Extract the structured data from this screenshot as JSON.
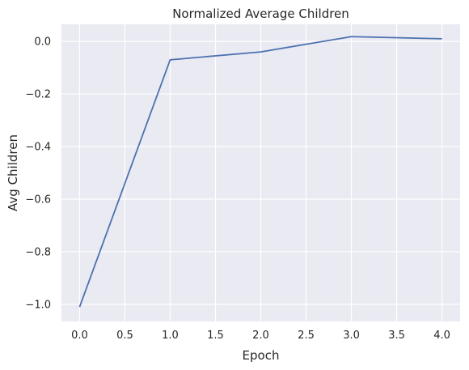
{
  "chart_data": {
    "type": "line",
    "title": "Normalized Average Children",
    "xlabel": "Epoch",
    "ylabel": "Avg Children",
    "xlim": [
      -0.2,
      4.2
    ],
    "ylim": [
      -1.065,
      0.065
    ],
    "xticks": [
      0.0,
      0.5,
      1.0,
      1.5,
      2.0,
      2.5,
      3.0,
      3.5,
      4.0
    ],
    "xtick_labels": [
      "0.0",
      "0.5",
      "1.0",
      "1.5",
      "2.0",
      "2.5",
      "3.0",
      "3.5",
      "4.0"
    ],
    "yticks": [
      0.0,
      -0.2,
      -0.4,
      -0.6,
      -0.8,
      -1.0
    ],
    "ytick_labels": [
      "0.0",
      "−0.2",
      "−0.4",
      "−0.6",
      "−0.8",
      "−1.0"
    ],
    "grid": true,
    "background": "#eaeaf2",
    "grid_color": "#ffffff",
    "series": [
      {
        "color": "#4c72b0",
        "x": [
          0,
          1,
          2,
          3,
          4
        ],
        "y": [
          -1.01,
          -0.07,
          -0.04,
          0.018,
          0.01
        ]
      }
    ]
  }
}
